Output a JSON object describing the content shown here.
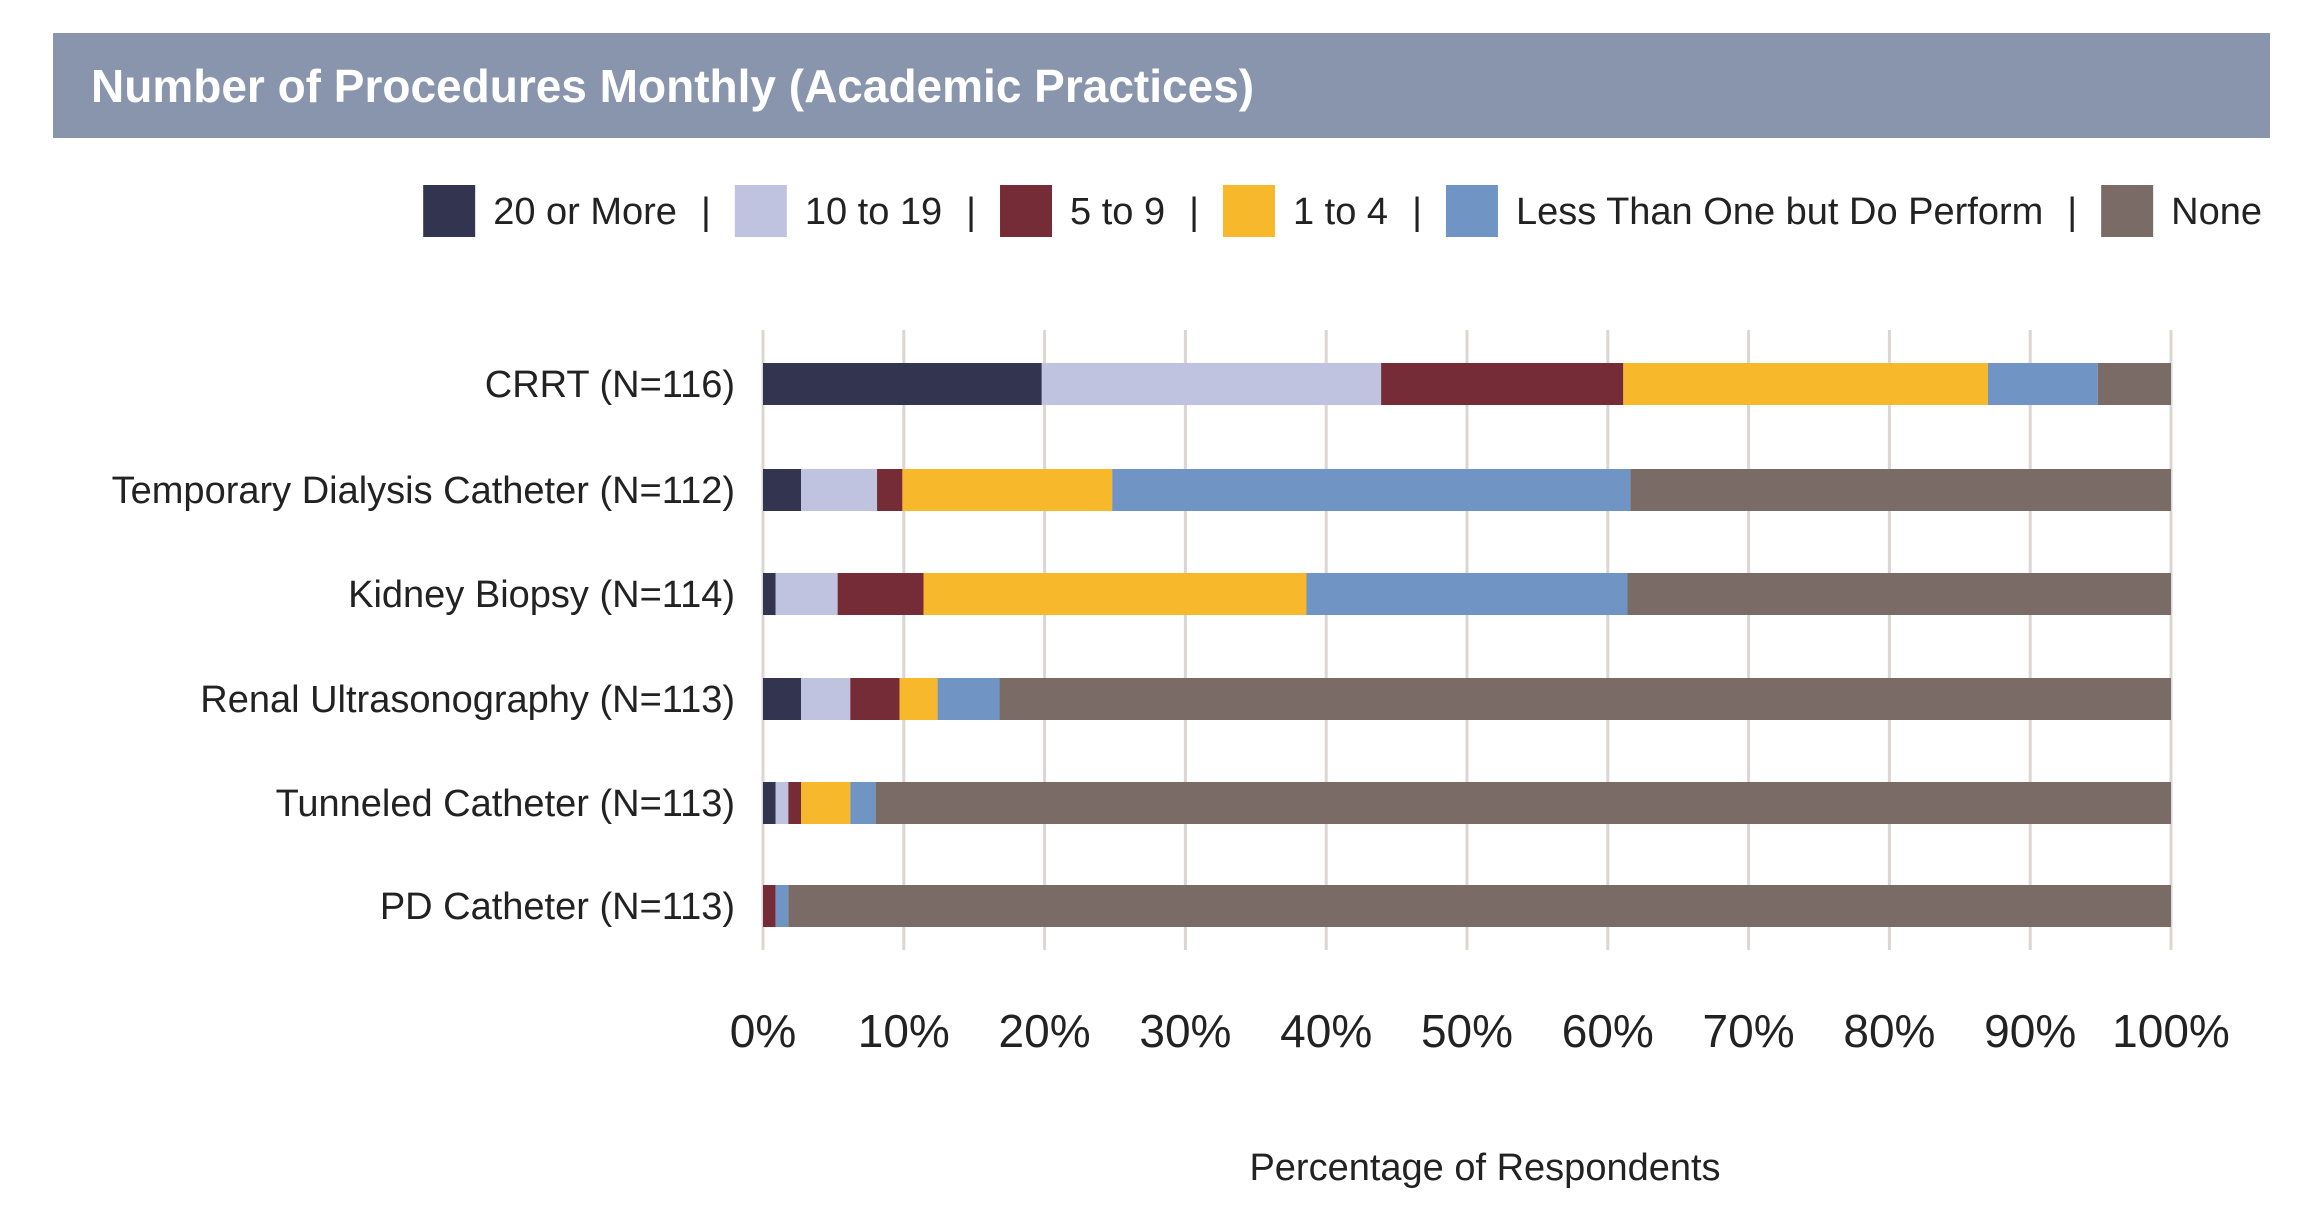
{
  "chart_data": {
    "type": "bar",
    "orientation": "horizontal",
    "stacked": true,
    "title": "Number of Procedures Monthly (Academic Practices)",
    "xlabel": "Percentage of Respondents",
    "ylabel": "",
    "xlim": [
      0,
      100
    ],
    "x_ticks": [
      "0%",
      "10%",
      "20%",
      "30%",
      "40%",
      "50%",
      "60%",
      "70%",
      "80%",
      "90%",
      "100%"
    ],
    "grid": "vertical",
    "legend_position": "top-right",
    "legend_separator": "|",
    "categories": [
      "CRRT (N=116)",
      "Temporary Dialysis Catheter (N=112)",
      "Kidney Biopsy (N=114)",
      "Renal Ultrasonography (N=113)",
      "Tunneled Catheter (N=113)",
      "PD Catheter (N=113)"
    ],
    "series": [
      {
        "name": "20 or More",
        "color": "#33344f",
        "values": [
          19.8,
          2.7,
          0.9,
          2.7,
          0.9,
          0
        ]
      },
      {
        "name": "10 to 19",
        "color": "#c0c3df",
        "values": [
          24.1,
          5.4,
          4.4,
          3.5,
          0.9,
          0
        ]
      },
      {
        "name": "5 to 9",
        "color": "#752c36",
        "values": [
          17.2,
          1.8,
          6.1,
          3.5,
          0.9,
          0.9
        ]
      },
      {
        "name": "1 to 4",
        "color": "#f7b82b",
        "values": [
          25.9,
          14.9,
          27.2,
          2.7,
          3.5,
          0
        ]
      },
      {
        "name": "Less Than One but Do Perform",
        "color": "#7094c4",
        "values": [
          7.8,
          36.8,
          22.8,
          4.4,
          1.8,
          0.9
        ]
      },
      {
        "name": "None",
        "color": "#7a6b66",
        "values": [
          5.2,
          38.4,
          38.6,
          83.2,
          92.0,
          98.2
        ]
      }
    ]
  }
}
